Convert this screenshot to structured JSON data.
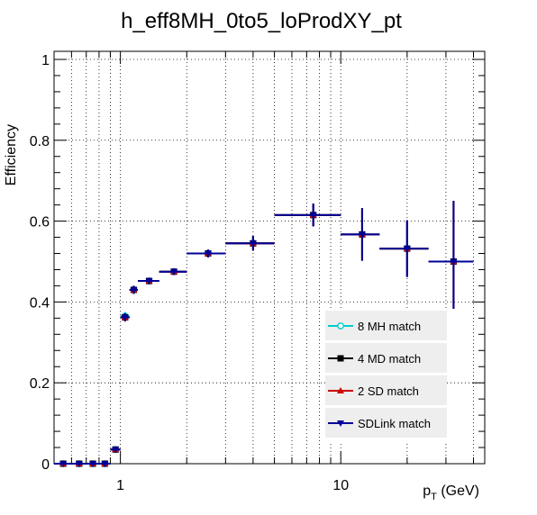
{
  "chart_data": {
    "type": "scatter",
    "title": "h_eff8MH_0to5_loProdXY_pt",
    "xlabel_main": "p",
    "xlabel_sub": "T",
    "xlabel_unit": " (GeV)",
    "ylabel": "Efficiency",
    "x_scale": "log",
    "xlim": [
      0.5,
      45
    ],
    "ylim": [
      0,
      1.02
    ],
    "x_ticks": [
      {
        "value": 1,
        "label": "1"
      },
      {
        "value": 10,
        "label": "10"
      }
    ],
    "y_ticks": [
      {
        "value": 0,
        "label": "0"
      },
      {
        "value": 0.2,
        "label": "0.2"
      },
      {
        "value": 0.4,
        "label": "0.4"
      },
      {
        "value": 0.6,
        "label": "0.6"
      },
      {
        "value": 0.8,
        "label": "0.8"
      },
      {
        "value": 1,
        "label": "1"
      }
    ],
    "grid": true,
    "legend_position": "bottom-right",
    "series": [
      {
        "name": "8 MH match",
        "color": "#00cccc",
        "marker": "open-circle",
        "points": [
          {
            "x": 0.55,
            "y": 0.0,
            "xlo": 0.5,
            "xhi": 0.6,
            "elo": 0.0,
            "ehi": 0.004
          },
          {
            "x": 0.65,
            "y": 0.0,
            "xlo": 0.6,
            "xhi": 0.7,
            "elo": 0.0,
            "ehi": 0.004
          },
          {
            "x": 0.75,
            "y": 0.0,
            "xlo": 0.7,
            "xhi": 0.8,
            "elo": 0.0,
            "ehi": 0.004
          },
          {
            "x": 0.85,
            "y": 0.0,
            "xlo": 0.8,
            "xhi": 0.9,
            "elo": 0.0,
            "ehi": 0.004
          },
          {
            "x": 0.95,
            "y": 0.035,
            "xlo": 0.9,
            "xhi": 1.0,
            "elo": 0.005,
            "ehi": 0.005
          },
          {
            "x": 1.05,
            "y": 0.365,
            "xlo": 1.0,
            "xhi": 1.1,
            "elo": 0.01,
            "ehi": 0.01
          },
          {
            "x": 1.15,
            "y": 0.43,
            "xlo": 1.1,
            "xhi": 1.2,
            "elo": 0.01,
            "ehi": 0.01
          },
          {
            "x": 1.35,
            "y": 0.452,
            "xlo": 1.2,
            "xhi": 1.5,
            "elo": 0.008,
            "ehi": 0.008
          },
          {
            "x": 1.75,
            "y": 0.475,
            "xlo": 1.5,
            "xhi": 2.0,
            "elo": 0.008,
            "ehi": 0.008
          },
          {
            "x": 2.5,
            "y": 0.52,
            "xlo": 2.0,
            "xhi": 3.0,
            "elo": 0.01,
            "ehi": 0.01
          },
          {
            "x": 4.0,
            "y": 0.545,
            "xlo": 3.0,
            "xhi": 5.0,
            "elo": 0.018,
            "ehi": 0.018
          },
          {
            "x": 7.5,
            "y": 0.615,
            "xlo": 5.0,
            "xhi": 10.0,
            "elo": 0.028,
            "ehi": 0.028
          },
          {
            "x": 12.5,
            "y": 0.567,
            "xlo": 10.0,
            "xhi": 15.0,
            "elo": 0.065,
            "ehi": 0.065
          },
          {
            "x": 20.0,
            "y": 0.532,
            "xlo": 15.0,
            "xhi": 25.0,
            "elo": 0.07,
            "ehi": 0.07
          },
          {
            "x": 32.5,
            "y": 0.5,
            "xlo": 25.0,
            "xhi": 40.0,
            "elo": 0.117,
            "ehi": 0.15
          }
        ]
      },
      {
        "name": "4 MD match",
        "color": "#000000",
        "marker": "filled-square",
        "points": [
          {
            "x": 0.55,
            "y": 0.0,
            "xlo": 0.5,
            "xhi": 0.6,
            "elo": 0.0,
            "ehi": 0.004
          },
          {
            "x": 0.65,
            "y": 0.0,
            "xlo": 0.6,
            "xhi": 0.7,
            "elo": 0.0,
            "ehi": 0.004
          },
          {
            "x": 0.75,
            "y": 0.0,
            "xlo": 0.7,
            "xhi": 0.8,
            "elo": 0.0,
            "ehi": 0.004
          },
          {
            "x": 0.85,
            "y": 0.0,
            "xlo": 0.8,
            "xhi": 0.9,
            "elo": 0.0,
            "ehi": 0.004
          },
          {
            "x": 0.95,
            "y": 0.035,
            "xlo": 0.9,
            "xhi": 1.0,
            "elo": 0.005,
            "ehi": 0.005
          },
          {
            "x": 1.05,
            "y": 0.362,
            "xlo": 1.0,
            "xhi": 1.1,
            "elo": 0.01,
            "ehi": 0.01
          },
          {
            "x": 1.15,
            "y": 0.43,
            "xlo": 1.1,
            "xhi": 1.2,
            "elo": 0.01,
            "ehi": 0.01
          },
          {
            "x": 1.35,
            "y": 0.452,
            "xlo": 1.2,
            "xhi": 1.5,
            "elo": 0.008,
            "ehi": 0.008
          },
          {
            "x": 1.75,
            "y": 0.475,
            "xlo": 1.5,
            "xhi": 2.0,
            "elo": 0.008,
            "ehi": 0.008
          },
          {
            "x": 2.5,
            "y": 0.52,
            "xlo": 2.0,
            "xhi": 3.0,
            "elo": 0.01,
            "ehi": 0.01
          },
          {
            "x": 4.0,
            "y": 0.545,
            "xlo": 3.0,
            "xhi": 5.0,
            "elo": 0.018,
            "ehi": 0.018
          },
          {
            "x": 7.5,
            "y": 0.615,
            "xlo": 5.0,
            "xhi": 10.0,
            "elo": 0.028,
            "ehi": 0.028
          },
          {
            "x": 12.5,
            "y": 0.567,
            "xlo": 10.0,
            "xhi": 15.0,
            "elo": 0.065,
            "ehi": 0.065
          },
          {
            "x": 20.0,
            "y": 0.532,
            "xlo": 15.0,
            "xhi": 25.0,
            "elo": 0.07,
            "ehi": 0.07
          },
          {
            "x": 32.5,
            "y": 0.5,
            "xlo": 25.0,
            "xhi": 40.0,
            "elo": 0.117,
            "ehi": 0.15
          }
        ]
      },
      {
        "name": "2 SD match",
        "color": "#cc0000",
        "marker": "filled-triangle-up",
        "points": [
          {
            "x": 0.55,
            "y": 0.0,
            "xlo": 0.5,
            "xhi": 0.6,
            "elo": 0.0,
            "ehi": 0.004
          },
          {
            "x": 0.65,
            "y": 0.0,
            "xlo": 0.6,
            "xhi": 0.7,
            "elo": 0.0,
            "ehi": 0.004
          },
          {
            "x": 0.75,
            "y": 0.0,
            "xlo": 0.7,
            "xhi": 0.8,
            "elo": 0.0,
            "ehi": 0.004
          },
          {
            "x": 0.85,
            "y": 0.0,
            "xlo": 0.8,
            "xhi": 0.9,
            "elo": 0.0,
            "ehi": 0.004
          },
          {
            "x": 0.95,
            "y": 0.035,
            "xlo": 0.9,
            "xhi": 1.0,
            "elo": 0.005,
            "ehi": 0.005
          },
          {
            "x": 1.05,
            "y": 0.362,
            "xlo": 1.0,
            "xhi": 1.1,
            "elo": 0.01,
            "ehi": 0.01
          },
          {
            "x": 1.15,
            "y": 0.43,
            "xlo": 1.1,
            "xhi": 1.2,
            "elo": 0.01,
            "ehi": 0.01
          },
          {
            "x": 1.35,
            "y": 0.452,
            "xlo": 1.2,
            "xhi": 1.5,
            "elo": 0.008,
            "ehi": 0.008
          },
          {
            "x": 1.75,
            "y": 0.475,
            "xlo": 1.5,
            "xhi": 2.0,
            "elo": 0.008,
            "ehi": 0.008
          },
          {
            "x": 2.5,
            "y": 0.52,
            "xlo": 2.0,
            "xhi": 3.0,
            "elo": 0.01,
            "ehi": 0.01
          },
          {
            "x": 4.0,
            "y": 0.545,
            "xlo": 3.0,
            "xhi": 5.0,
            "elo": 0.018,
            "ehi": 0.018
          },
          {
            "x": 7.5,
            "y": 0.615,
            "xlo": 5.0,
            "xhi": 10.0,
            "elo": 0.028,
            "ehi": 0.028
          },
          {
            "x": 12.5,
            "y": 0.567,
            "xlo": 10.0,
            "xhi": 15.0,
            "elo": 0.065,
            "ehi": 0.065
          },
          {
            "x": 20.0,
            "y": 0.532,
            "xlo": 15.0,
            "xhi": 25.0,
            "elo": 0.07,
            "ehi": 0.07
          },
          {
            "x": 32.5,
            "y": 0.5,
            "xlo": 25.0,
            "xhi": 40.0,
            "elo": 0.117,
            "ehi": 0.15
          }
        ]
      },
      {
        "name": "SDLink match",
        "color": "#000099",
        "marker": "filled-triangle-down",
        "points": [
          {
            "x": 0.55,
            "y": 0.0,
            "xlo": 0.5,
            "xhi": 0.6,
            "elo": 0.0,
            "ehi": 0.004
          },
          {
            "x": 0.65,
            "y": 0.0,
            "xlo": 0.6,
            "xhi": 0.7,
            "elo": 0.0,
            "ehi": 0.004
          },
          {
            "x": 0.75,
            "y": 0.0,
            "xlo": 0.7,
            "xhi": 0.8,
            "elo": 0.0,
            "ehi": 0.004
          },
          {
            "x": 0.85,
            "y": 0.0,
            "xlo": 0.8,
            "xhi": 0.9,
            "elo": 0.0,
            "ehi": 0.004
          },
          {
            "x": 0.95,
            "y": 0.035,
            "xlo": 0.9,
            "xhi": 1.0,
            "elo": 0.005,
            "ehi": 0.005
          },
          {
            "x": 1.05,
            "y": 0.362,
            "xlo": 1.0,
            "xhi": 1.1,
            "elo": 0.01,
            "ehi": 0.01
          },
          {
            "x": 1.15,
            "y": 0.43,
            "xlo": 1.1,
            "xhi": 1.2,
            "elo": 0.01,
            "ehi": 0.01
          },
          {
            "x": 1.35,
            "y": 0.452,
            "xlo": 1.2,
            "xhi": 1.5,
            "elo": 0.008,
            "ehi": 0.008
          },
          {
            "x": 1.75,
            "y": 0.475,
            "xlo": 1.5,
            "xhi": 2.0,
            "elo": 0.008,
            "ehi": 0.008
          },
          {
            "x": 2.5,
            "y": 0.52,
            "xlo": 2.0,
            "xhi": 3.0,
            "elo": 0.01,
            "ehi": 0.01
          },
          {
            "x": 4.0,
            "y": 0.545,
            "xlo": 3.0,
            "xhi": 5.0,
            "elo": 0.018,
            "ehi": 0.018
          },
          {
            "x": 7.5,
            "y": 0.615,
            "xlo": 5.0,
            "xhi": 10.0,
            "elo": 0.028,
            "ehi": 0.028
          },
          {
            "x": 12.5,
            "y": 0.567,
            "xlo": 10.0,
            "xhi": 15.0,
            "elo": 0.065,
            "ehi": 0.065
          },
          {
            "x": 20.0,
            "y": 0.532,
            "xlo": 15.0,
            "xhi": 25.0,
            "elo": 0.07,
            "ehi": 0.07
          },
          {
            "x": 32.5,
            "y": 0.5,
            "xlo": 25.0,
            "xhi": 40.0,
            "elo": 0.117,
            "ehi": 0.15
          }
        ]
      }
    ]
  }
}
